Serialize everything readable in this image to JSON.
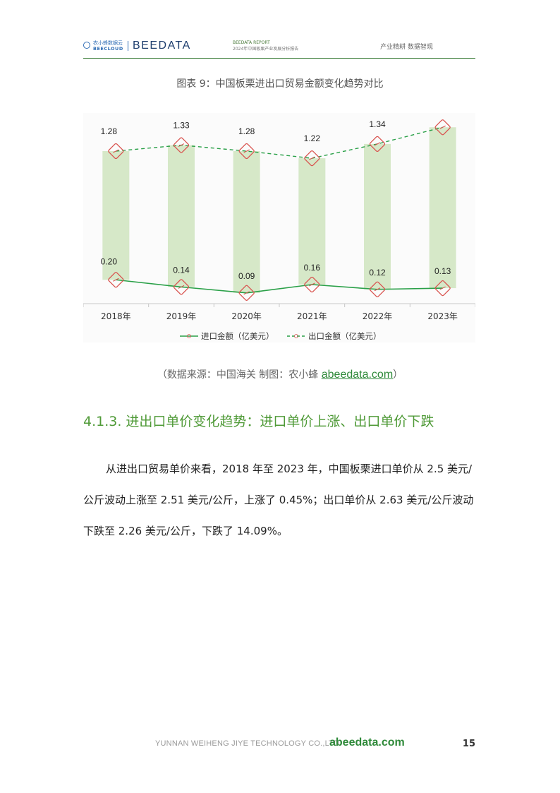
{
  "header": {
    "logo_cn": "农小蜂数据云",
    "logo_en": "BEECLOUD",
    "brand": "BEEDATA",
    "report_line1": "BEEDATA REPORT",
    "report_line2": "2024年中国板栗产业发展分析报告",
    "tagline": "产业精耕  数据智现"
  },
  "figure": {
    "title": "图表 9：中国板栗进出口贸易金额变化趋势对比",
    "source_text": "（数据来源：中国海关    制图：农小蜂 ",
    "source_link": "abeedata.com",
    "source_close": "）"
  },
  "chart_data": {
    "type": "line",
    "categories": [
      "2018年",
      "2019年",
      "2020年",
      "2021年",
      "2022年",
      "2023年"
    ],
    "series": [
      {
        "name": "进口金额（亿美元）",
        "values": [
          0.2,
          0.14,
          0.09,
          0.16,
          0.12,
          0.13
        ],
        "color": "#2aa048",
        "style": "solid"
      },
      {
        "name": "出口金额（亿美元）",
        "values": [
          1.28,
          1.33,
          1.28,
          1.22,
          1.34,
          1.48
        ],
        "color": "#2aa048",
        "style": "dashed"
      }
    ],
    "value_labels": {
      "import": [
        "0.20",
        "0.14",
        "0.09",
        "0.16",
        "0.12",
        "0.13"
      ],
      "export": [
        "1.28",
        "1.33",
        "1.28",
        "1.22",
        "1.34",
        "1.48"
      ]
    },
    "ylim": [
      0,
      1.6
    ],
    "bar_color": "#d6e8c8",
    "marker_color": "#d9534f",
    "legend_position": "bottom",
    "grid": false
  },
  "section": {
    "heading": "4.1.3. 进出口单价变化趋势：进口单价上涨、出口单价下跌",
    "paragraph": "从进出口贸易单价来看，2018 年至 2023 年，中国板栗进口单价从 2.5 美元/公斤波动上涨至 2.51 美元/公斤，上涨了 0.45%；出口单价从 2.63 美元/公斤波动下跌至 2.26 美元/公斤，下跌了 14.09%。"
  },
  "footer": {
    "company": "YUNNAN WEIHENG JIYE TECHNOLOGY CO.,LTD.",
    "site": "abeedata.com",
    "page_number": "15"
  }
}
